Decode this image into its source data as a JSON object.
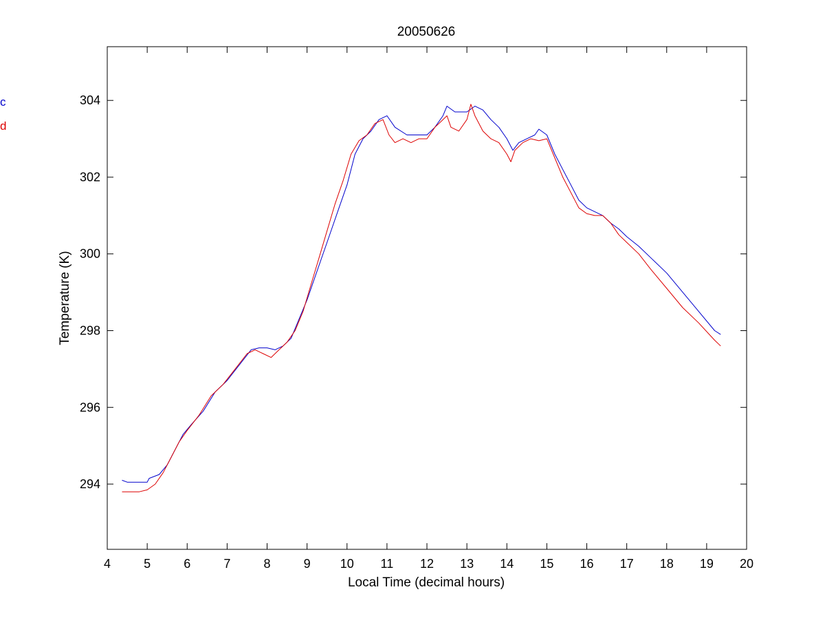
{
  "chart_data": {
    "type": "line",
    "title": "20050626",
    "xlabel": "Local Time (decimal hours)",
    "ylabel": "Temperature (K)",
    "xlim": [
      4,
      20
    ],
    "ylim": [
      292.3,
      305.4
    ],
    "xticks": [
      4,
      5,
      6,
      7,
      8,
      9,
      10,
      11,
      12,
      13,
      14,
      15,
      16,
      17,
      18,
      19,
      20
    ],
    "yticks": [
      294,
      296,
      298,
      300,
      302,
      304
    ],
    "grid": false,
    "legend_placement": "left, clipped outside figure",
    "series": [
      {
        "name": "c",
        "color": "#0000cc",
        "x": [
          4.37,
          4.5,
          4.8,
          5.0,
          5.05,
          5.3,
          5.5,
          5.7,
          5.9,
          6.1,
          6.4,
          6.7,
          7.0,
          7.3,
          7.6,
          7.8,
          8.0,
          8.2,
          8.4,
          8.6,
          8.8,
          9.0,
          9.2,
          9.5,
          9.8,
          10.0,
          10.2,
          10.4,
          10.6,
          10.8,
          11.0,
          11.2,
          11.5,
          11.8,
          12.0,
          12.2,
          12.4,
          12.5,
          12.7,
          13.0,
          13.2,
          13.4,
          13.6,
          13.8,
          14.0,
          14.15,
          14.3,
          14.5,
          14.7,
          14.8,
          15.0,
          15.2,
          15.4,
          15.6,
          15.8,
          16.0,
          16.2,
          16.4,
          16.6,
          16.8,
          17.0,
          17.3,
          17.6,
          18.0,
          18.4,
          18.8,
          19.2,
          19.35
        ],
        "values": [
          294.1,
          294.05,
          294.05,
          294.05,
          294.15,
          294.25,
          294.5,
          294.9,
          295.3,
          295.55,
          295.9,
          296.4,
          296.7,
          297.1,
          297.5,
          297.55,
          297.55,
          297.5,
          297.6,
          297.8,
          298.3,
          298.8,
          299.4,
          300.3,
          301.2,
          301.8,
          302.6,
          303.0,
          303.2,
          303.5,
          303.6,
          303.3,
          303.1,
          303.1,
          303.1,
          303.3,
          303.6,
          303.85,
          303.7,
          303.7,
          303.85,
          303.75,
          303.5,
          303.3,
          303.0,
          302.7,
          302.9,
          303.0,
          303.1,
          303.25,
          303.1,
          302.6,
          302.2,
          301.8,
          301.4,
          301.2,
          301.1,
          301.0,
          300.8,
          300.65,
          300.45,
          300.2,
          299.9,
          299.5,
          299.0,
          298.5,
          298.0,
          297.9
        ]
      },
      {
        "name": "d",
        "color": "#dd0000",
        "x": [
          4.37,
          4.5,
          4.8,
          5.0,
          5.2,
          5.4,
          5.6,
          5.8,
          6.0,
          6.3,
          6.6,
          6.9,
          7.2,
          7.5,
          7.7,
          7.9,
          8.1,
          8.3,
          8.5,
          8.7,
          8.9,
          9.1,
          9.3,
          9.5,
          9.7,
          9.9,
          10.1,
          10.3,
          10.5,
          10.7,
          10.9,
          11.05,
          11.2,
          11.4,
          11.6,
          11.8,
          12.0,
          12.2,
          12.4,
          12.5,
          12.6,
          12.8,
          13.0,
          13.1,
          13.2,
          13.4,
          13.6,
          13.8,
          14.0,
          14.1,
          14.2,
          14.4,
          14.6,
          14.8,
          15.0,
          15.2,
          15.4,
          15.6,
          15.8,
          16.0,
          16.2,
          16.4,
          16.6,
          16.8,
          17.0,
          17.3,
          17.6,
          18.0,
          18.4,
          18.8,
          19.2,
          19.35
        ],
        "values": [
          293.8,
          293.8,
          293.8,
          293.85,
          294.0,
          294.3,
          294.7,
          295.1,
          295.4,
          295.8,
          296.3,
          296.6,
          297.0,
          297.4,
          297.5,
          297.4,
          297.3,
          297.5,
          297.7,
          298.0,
          298.5,
          299.2,
          299.9,
          300.6,
          301.3,
          301.9,
          302.6,
          302.95,
          303.1,
          303.4,
          303.5,
          303.1,
          302.9,
          303.0,
          302.9,
          303.0,
          303.0,
          303.3,
          303.5,
          303.6,
          303.3,
          303.2,
          303.5,
          303.9,
          303.6,
          303.2,
          303.0,
          302.9,
          302.6,
          302.4,
          302.7,
          302.9,
          303.0,
          302.95,
          303.0,
          302.5,
          302.0,
          301.6,
          301.2,
          301.05,
          301.0,
          301.0,
          300.8,
          300.5,
          300.3,
          300.0,
          299.6,
          299.1,
          298.6,
          298.2,
          297.75,
          297.6
        ]
      }
    ]
  }
}
